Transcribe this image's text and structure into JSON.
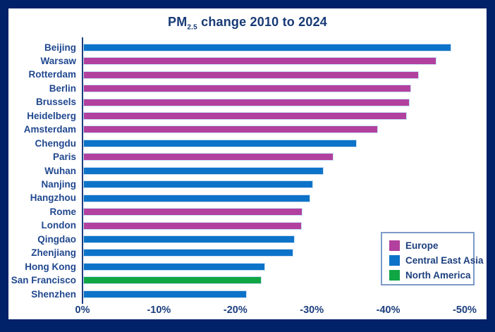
{
  "window": {
    "border_color": "#012169",
    "background": "#ffffff"
  },
  "title": {
    "prefix": "PM",
    "subscript": "2.5",
    "suffix": " change 2010 to 2024"
  },
  "colors": {
    "Europe": "#b2409e",
    "Central East Asia": "#0d73c8",
    "North America": "#0fa644",
    "text_navy": "#1d3f7e",
    "axis_line": "#1d3f7e",
    "bar_outline": "#c9e0f5",
    "legend_border": "#7d9bc7"
  },
  "legend": {
    "items": [
      {
        "label": "Europe",
        "color": "#b2409e"
      },
      {
        "label": "Central East Asia",
        "color": "#0d73c8"
      },
      {
        "label": "North America",
        "color": "#0fa644"
      }
    ],
    "position": "lower right"
  },
  "chart_data": {
    "type": "bar",
    "orientation": "horizontal",
    "title": "PM2.5 change 2010 to 2024",
    "xlabel": "",
    "ylabel": "",
    "xlim": [
      0,
      -50
    ],
    "x_tick_labels": [
      "0%",
      "-10%",
      "-20%",
      "-30%",
      "-40%",
      "-50%"
    ],
    "grid": false,
    "unit": "percent",
    "categories": [
      "Beijing",
      "Warsaw",
      "Rotterdam",
      "Berlin",
      "Brussels",
      "Heidelberg",
      "Amsterdam",
      "Chengdu",
      "Paris",
      "Wuhan",
      "Nanjing",
      "Hangzhou",
      "Rome",
      "London",
      "Qingdao",
      "Zhenjiang",
      "Hong Kong",
      "San Francisco",
      "Shenzhen"
    ],
    "values": [
      -48.0,
      -46.0,
      -43.7,
      -42.7,
      -42.5,
      -42.2,
      -38.4,
      -35.6,
      -32.6,
      -31.3,
      -29.9,
      -29.5,
      -28.5,
      -28.4,
      -27.5,
      -27.3,
      -23.6,
      -23.2,
      -21.2
    ],
    "regions": [
      "Central East Asia",
      "Europe",
      "Europe",
      "Europe",
      "Europe",
      "Europe",
      "Europe",
      "Central East Asia",
      "Europe",
      "Central East Asia",
      "Central East Asia",
      "Central East Asia",
      "Europe",
      "Europe",
      "Central East Asia",
      "Central East Asia",
      "Central East Asia",
      "North America",
      "Central East Asia"
    ]
  }
}
